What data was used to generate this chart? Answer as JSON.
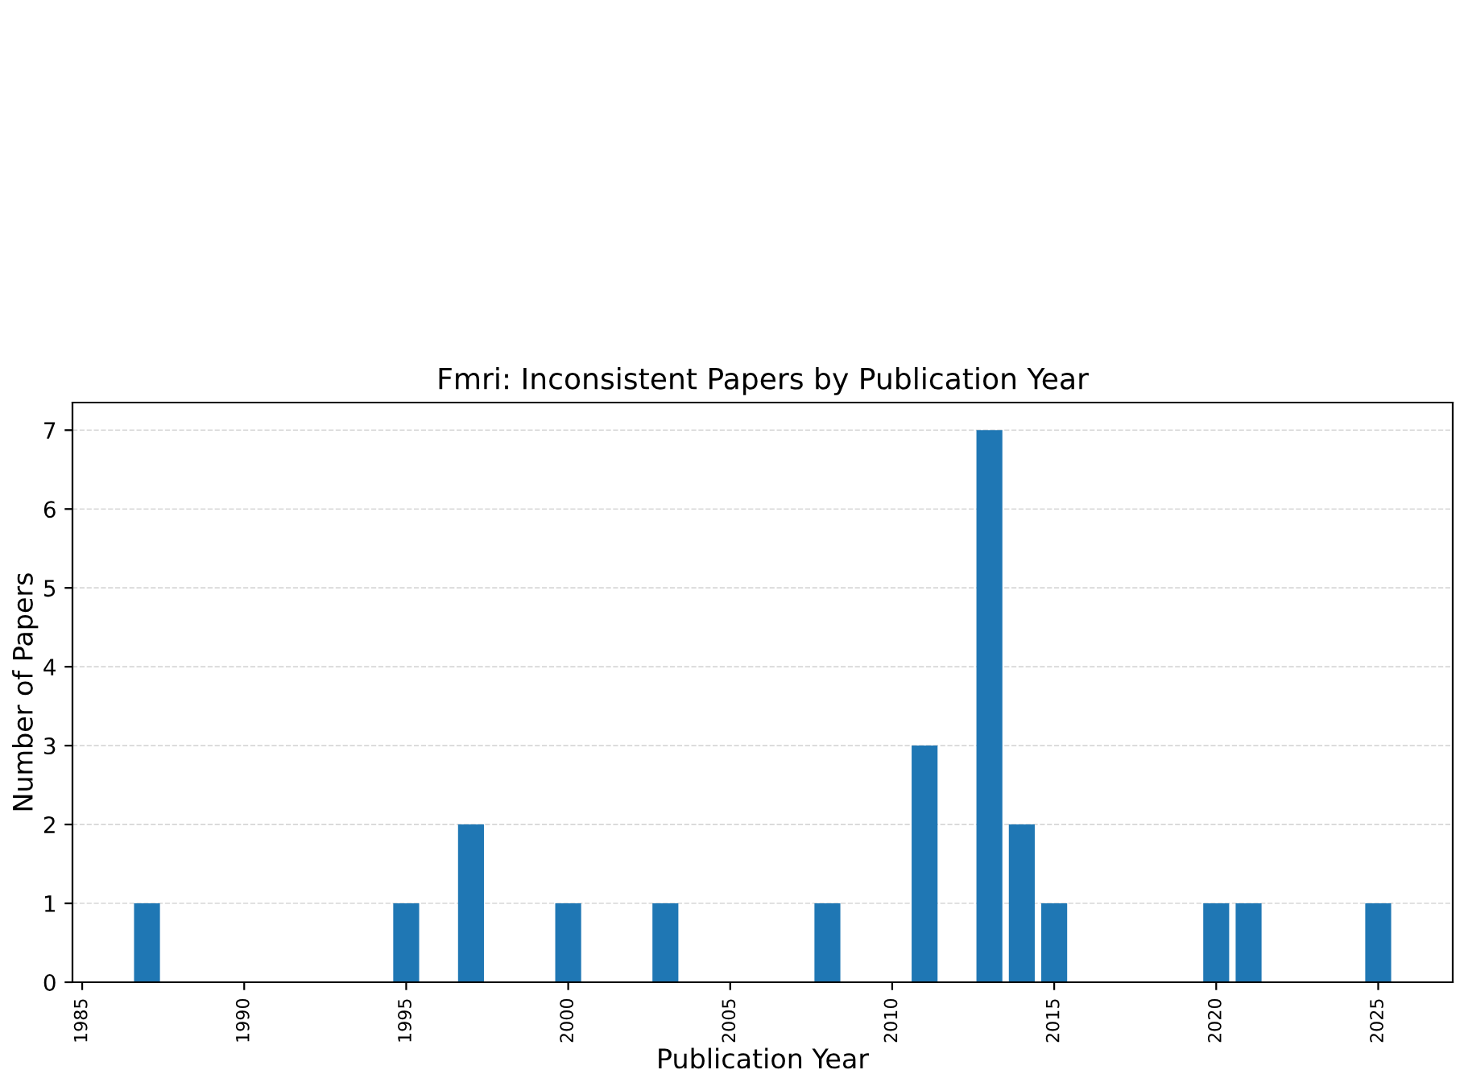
{
  "chart_data": {
    "type": "bar",
    "title": "Fmri: Inconsistent Papers by Publication Year",
    "xlabel": "Publication Year",
    "ylabel": "Number of Papers",
    "x": [
      1987,
      1995,
      1997,
      2000,
      2003,
      2008,
      2011,
      2013,
      2014,
      2015,
      2020,
      2021,
      2025
    ],
    "values": [
      1,
      1,
      2,
      1,
      1,
      1,
      3,
      7,
      2,
      1,
      1,
      1,
      1
    ],
    "color": "#1f77b4",
    "xlim": [
      1984.7,
      2027.3
    ],
    "xticks": [
      1985,
      1990,
      1995,
      2000,
      2005,
      2010,
      2015,
      2020,
      2025
    ],
    "ylim": [
      0,
      7.35
    ],
    "yticks": [
      0,
      1,
      2,
      3,
      4,
      5,
      6,
      7
    ],
    "grid": "y"
  }
}
